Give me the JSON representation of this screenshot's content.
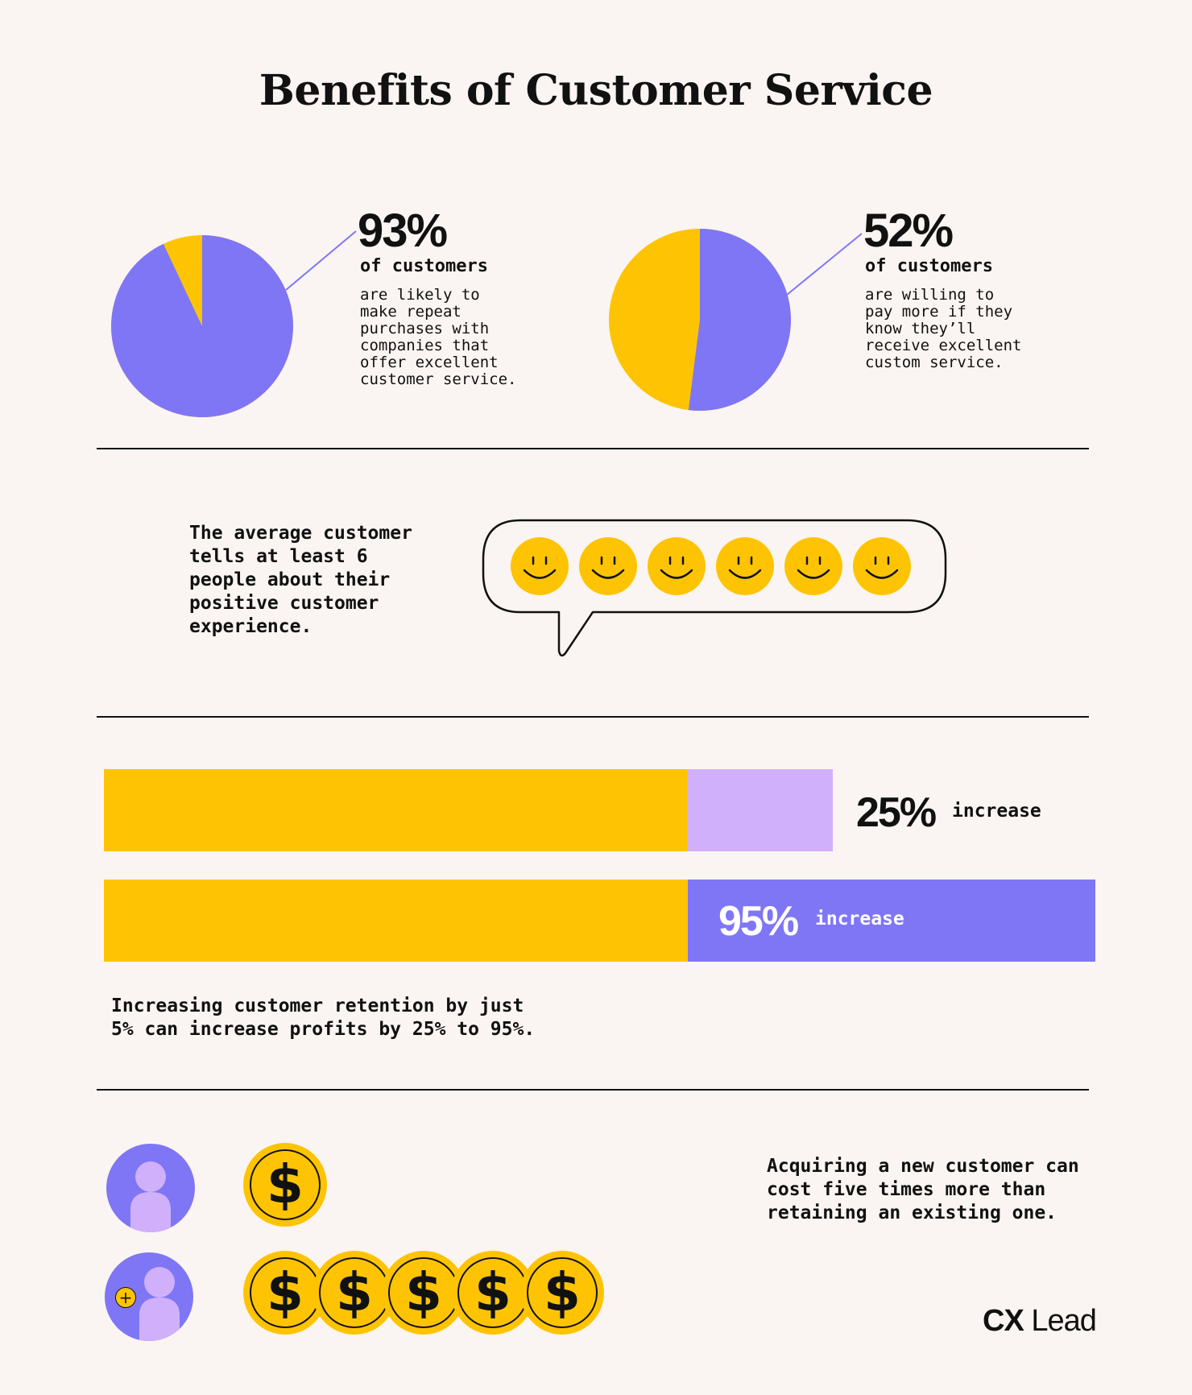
{
  "title": "Benefits of Customer Service",
  "colors": {
    "purple": "#7f76f6",
    "yellow": "#fec403",
    "lavender": "#d1b0fb",
    "background": "#faf5f2"
  },
  "stats": [
    {
      "percent": "93%",
      "value": 93,
      "subtitle": "of customers",
      "description": "are likely to\nmake repeat\npurchases with\ncompanies that\noffer excellent\ncustomer service."
    },
    {
      "percent": "52%",
      "value": 52,
      "subtitle": "of customers",
      "description": "are willing to\npay more if they\nknow they’ll\nreceive excellent\ncustom service."
    }
  ],
  "word_of_mouth": {
    "text": "The average customer\ntells at least 6\npeople about their\npositive customer\nexperience.",
    "smiley_count": 6
  },
  "retention": {
    "bars": [
      {
        "percent": "25%",
        "label": "increase",
        "value": 25
      },
      {
        "percent": "95%",
        "label": "increase",
        "value": 95
      }
    ],
    "text": "Increasing customer retention by just\n5% can increase profits by 25% to 95%."
  },
  "acquisition": {
    "coin_symbol": "$",
    "existing_customer_coins": 1,
    "new_customer_coins": 5,
    "new_customer_badge": "+",
    "text": "Acquiring a new customer can\ncost five times more than\nretaining an existing one."
  },
  "logo": {
    "mark": "CX",
    "word": "Lead"
  }
}
